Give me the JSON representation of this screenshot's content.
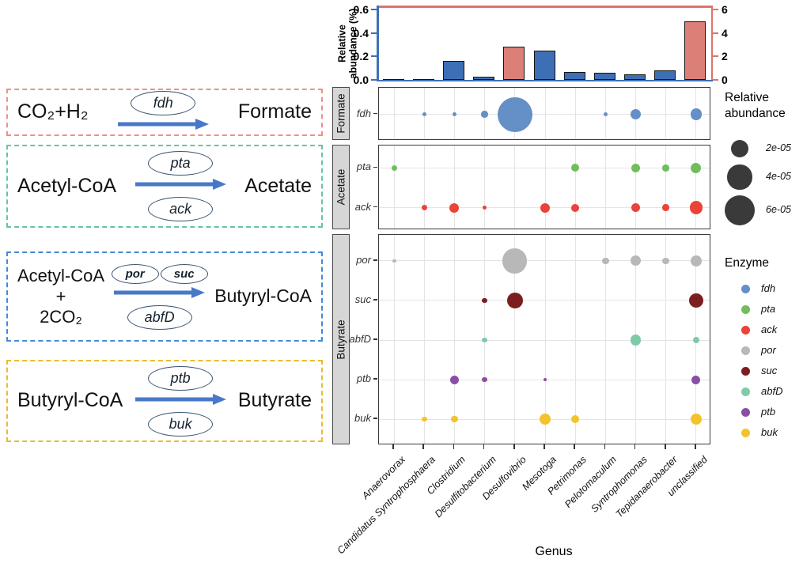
{
  "pathway": {
    "arrow_color": "#4878C8",
    "ellipse_border_color": "#3A5472",
    "boxes": [
      {
        "name": "formate-reaction",
        "border_color": "#EC9088",
        "substrate_lines": [
          "CO₂+H₂"
        ],
        "top_enzymes": [
          "fdh"
        ],
        "bottom_enzymes": [],
        "product": "Formate"
      },
      {
        "name": "acetate-reaction",
        "border_color": "#63C6A3",
        "substrate_lines": [
          "Acetyl-CoA"
        ],
        "top_enzymes": [
          "pta"
        ],
        "bottom_enzymes": [
          "ack"
        ],
        "product": "Acetate"
      },
      {
        "name": "butyryl-coa-reaction",
        "border_color": "#4489DC",
        "substrate_lines": [
          "Acetyl-CoA",
          "+",
          "2CO₂"
        ],
        "top_enzymes": [
          "por",
          "suc"
        ],
        "bottom_enzymes": [
          "abfD"
        ],
        "product": "Butyryl-CoA"
      },
      {
        "name": "butyrate-reaction",
        "border_color": "#EBBB2E",
        "substrate_lines": [
          "Butyryl-CoA"
        ],
        "top_enzymes": [
          "ptb"
        ],
        "bottom_enzymes": [
          "buk"
        ],
        "product": "Butyrate"
      }
    ]
  },
  "chart_data": {
    "type": "composite",
    "genera": [
      "Anaerovorax",
      "Candidatus Syntrophosphaera",
      "Clostridium",
      "Desulfitobacterium",
      "Desulfovibrio",
      "Mesotoga",
      "Petrimonas",
      "Pelotomaculum",
      "Syntrophomonas",
      "Tepidanaerobacter",
      "unclassified"
    ],
    "xlabel": "Genus",
    "bar_chart": {
      "type": "bar",
      "ylabel": "Relative abundance (%)",
      "left_axis": {
        "color": "#3D6FB5",
        "ticks": [
          "0.0",
          "0.2",
          "0.4",
          "0.6"
        ],
        "range": [
          0,
          0.62
        ]
      },
      "right_axis": {
        "color": "#D9766C",
        "ticks": [
          "0",
          "2",
          "4",
          "6"
        ],
        "range": [
          0,
          6.2
        ]
      },
      "bar_colors": {
        "left": "#3D6FB5",
        "right": "#DC7F77"
      },
      "bars": [
        {
          "genus": "Anaerovorax",
          "axis": "left",
          "value": 0.01
        },
        {
          "genus": "Candidatus Syntrophosphaera",
          "axis": "left",
          "value": 0.008
        },
        {
          "genus": "Clostridium",
          "axis": "left",
          "value": 0.16
        },
        {
          "genus": "Desulfitobacterium",
          "axis": "left",
          "value": 0.03
        },
        {
          "genus": "Desulfovibrio",
          "axis": "right",
          "value": 2.8
        },
        {
          "genus": "Mesotoga",
          "axis": "left",
          "value": 0.25
        },
        {
          "genus": "Petrimonas",
          "axis": "left",
          "value": 0.07
        },
        {
          "genus": "Pelotomaculum",
          "axis": "left",
          "value": 0.06
        },
        {
          "genus": "Syntrophomonas",
          "axis": "left",
          "value": 0.05
        },
        {
          "genus": "Tepidanaerobacter",
          "axis": "left",
          "value": 0.08
        },
        {
          "genus": "unclassified",
          "axis": "right",
          "value": 5.0
        }
      ]
    },
    "dot_plot": {
      "type": "scatter",
      "enzyme_colors": {
        "fdh": "#6590C7",
        "pta": "#70BE5B",
        "ack": "#EA4339",
        "por": "#B8B8B8",
        "suc": "#7C1E20",
        "abfD": "#7FCBA8",
        "ptb": "#8A4FA5",
        "buk": "#F3C32C"
      },
      "panels": [
        {
          "label": "Formate",
          "rows": [
            {
              "gene": "fdh",
              "dots": [
                {
                  "genus": "Candidatus Syntrophosphaera",
                  "value": 1e-06
                },
                {
                  "genus": "Clostridium",
                  "value": 1e-06
                },
                {
                  "genus": "Desulfitobacterium",
                  "value": 3e-06
                },
                {
                  "genus": "Desulfovibrio",
                  "value": 8e-05
                },
                {
                  "genus": "Pelotomaculum",
                  "value": 1e-06
                },
                {
                  "genus": "Syntrophomonas",
                  "value": 7e-06
                },
                {
                  "genus": "unclassified",
                  "value": 9e-06
                }
              ]
            }
          ]
        },
        {
          "label": "Acetate",
          "rows": [
            {
              "gene": "pta",
              "dots": [
                {
                  "genus": "Anaerovorax",
                  "value": 2e-06
                },
                {
                  "genus": "Petrimonas",
                  "value": 4e-06
                },
                {
                  "genus": "Syntrophomonas",
                  "value": 5e-06
                },
                {
                  "genus": "Tepidanaerobacter",
                  "value": 3e-06
                },
                {
                  "genus": "unclassified",
                  "value": 7e-06
                }
              ]
            },
            {
              "gene": "ack",
              "dots": [
                {
                  "genus": "Candidatus Syntrophosphaera",
                  "value": 2e-06
                },
                {
                  "genus": "Clostridium",
                  "value": 6e-06
                },
                {
                  "genus": "Desulfitobacterium",
                  "value": 1e-06
                },
                {
                  "genus": "Mesotoga",
                  "value": 6e-06
                },
                {
                  "genus": "Petrimonas",
                  "value": 4e-06
                },
                {
                  "genus": "Syntrophomonas",
                  "value": 5e-06
                },
                {
                  "genus": "Tepidanaerobacter",
                  "value": 3e-06
                },
                {
                  "genus": "unclassified",
                  "value": 1.1e-05
                }
              ]
            }
          ]
        },
        {
          "label": "Butyrate",
          "rows": [
            {
              "gene": "por",
              "dots": [
                {
                  "genus": "Anaerovorax",
                  "value": 1e-06
                },
                {
                  "genus": "Desulfovibrio",
                  "value": 4e-05
                },
                {
                  "genus": "Pelotomaculum",
                  "value": 3e-06
                },
                {
                  "genus": "Syntrophomonas",
                  "value": 7e-06
                },
                {
                  "genus": "Tepidanaerobacter",
                  "value": 3e-06
                },
                {
                  "genus": "unclassified",
                  "value": 8e-06
                }
              ]
            },
            {
              "gene": "suc",
              "dots": [
                {
                  "genus": "Desulfitobacterium",
                  "value": 2e-06
                },
                {
                  "genus": "Desulfovibrio",
                  "value": 1.7e-05
                },
                {
                  "genus": "unclassified",
                  "value": 1.4e-05
                }
              ]
            },
            {
              "gene": "abfD",
              "dots": [
                {
                  "genus": "Desulfitobacterium",
                  "value": 2e-06
                },
                {
                  "genus": "Syntrophomonas",
                  "value": 8e-06
                },
                {
                  "genus": "unclassified",
                  "value": 3e-06
                }
              ]
            },
            {
              "gene": "ptb",
              "dots": [
                {
                  "genus": "Clostridium",
                  "value": 5e-06
                },
                {
                  "genus": "Desulfitobacterium",
                  "value": 2e-06
                },
                {
                  "genus": "Mesotoga",
                  "value": 1e-06
                },
                {
                  "genus": "unclassified",
                  "value": 5e-06
                }
              ]
            },
            {
              "gene": "buk",
              "dots": [
                {
                  "genus": "Candidatus Syntrophosphaera",
                  "value": 2e-06
                },
                {
                  "genus": "Clostridium",
                  "value": 3e-06
                },
                {
                  "genus": "Mesotoga",
                  "value": 8e-06
                },
                {
                  "genus": "Petrimonas",
                  "value": 4e-06
                },
                {
                  "genus": "unclassified",
                  "value": 9e-06
                }
              ]
            }
          ]
        }
      ]
    },
    "size_legend": {
      "title": "Relative abundance",
      "circle_color": "#3A3A3A",
      "entries": [
        {
          "label": "2e-05",
          "value": 2e-05
        },
        {
          "label": "4e-05",
          "value": 4e-05
        },
        {
          "label": "6e-05",
          "value": 6e-05
        }
      ]
    },
    "enzyme_legend": {
      "title": "Enzyme",
      "entries": [
        {
          "label": "fdh"
        },
        {
          "label": "pta"
        },
        {
          "label": "ack"
        },
        {
          "label": "por"
        },
        {
          "label": "suc"
        },
        {
          "label": "abfD"
        },
        {
          "label": "ptb"
        },
        {
          "label": "buk"
        }
      ]
    }
  }
}
